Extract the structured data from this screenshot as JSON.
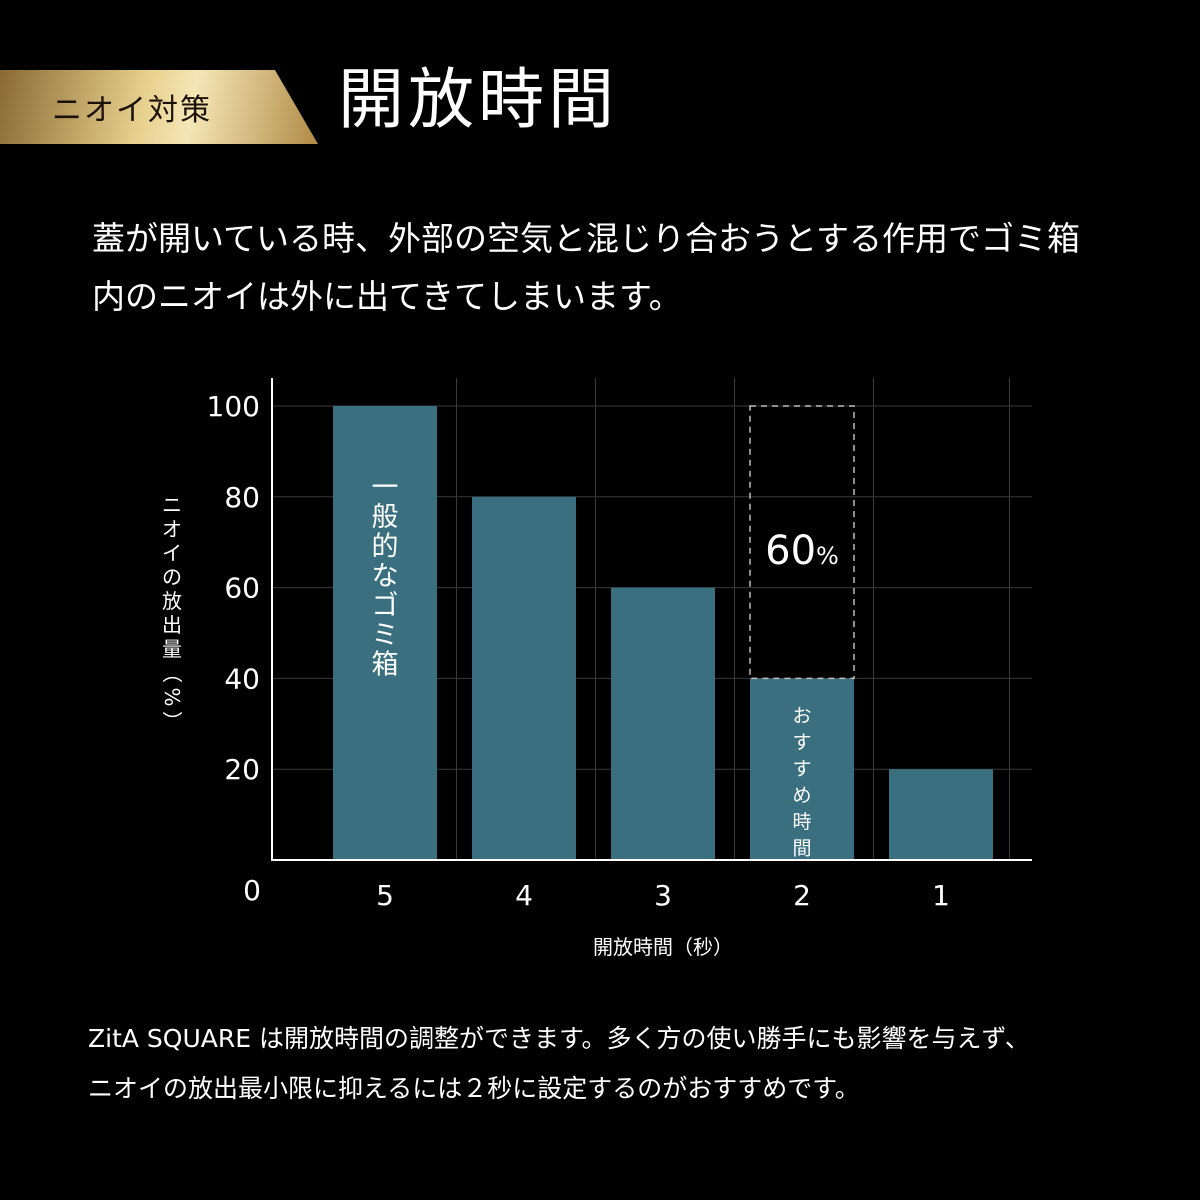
{
  "header": {
    "badge": "ニオイ対策",
    "title": "開放時間"
  },
  "intro": {
    "line1": "蓋が開いている時、外部の空気と混じり合おうとする作用でゴミ箱",
    "line2": "内のニオイは外に出てきてしまいます。"
  },
  "chart_data": {
    "type": "bar",
    "categories": [
      "5",
      "4",
      "3",
      "2",
      "1"
    ],
    "values": [
      100,
      80,
      60,
      40,
      20
    ],
    "xlabel": "開放時間（秒）",
    "ylabel": "ニオイの放出量（%）",
    "yticks": [
      0,
      20,
      40,
      60,
      80,
      100
    ],
    "ylim": [
      0,
      100
    ],
    "grid": true,
    "bar_color": "#3a6f80",
    "bar_labels": {
      "0": "一般的なゴミ箱",
      "3": "おすすめ時間"
    },
    "annotation": {
      "category_index": 3,
      "reference_value": 100,
      "value": "60",
      "unit": "%"
    }
  },
  "footer": {
    "line1": "ZitA SQUARE は開放時間の調整ができます。多く方の使い勝手にも影響を与えず、",
    "line2": "ニオイの放出最小限に抑えるには２秒に設定するのがおすすめです。"
  }
}
